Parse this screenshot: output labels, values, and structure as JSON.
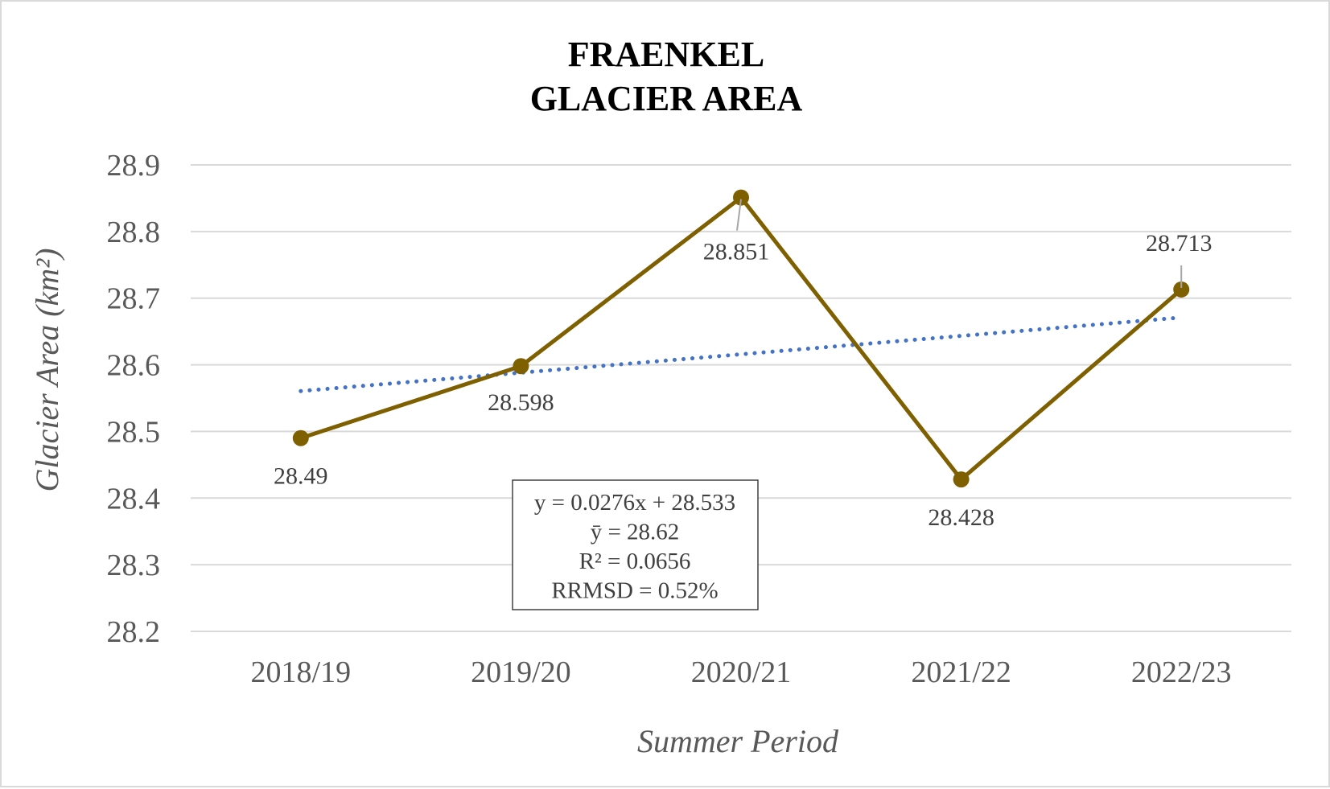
{
  "chart_data": {
    "type": "line",
    "title_lines": [
      "FRAENKEL",
      "GLACIER AREA"
    ],
    "xlabel": "Summer Period",
    "ylabel": "Glacier Area (km²)",
    "categories": [
      "2018/19",
      "2019/20",
      "2020/21",
      "2021/22",
      "2022/23"
    ],
    "values": [
      28.49,
      28.598,
      28.851,
      28.428,
      28.713
    ],
    "data_labels": [
      "28.49",
      "28.598",
      "28.851",
      "28.428",
      "28.713"
    ],
    "ylim": [
      28.2,
      28.9
    ],
    "yticks": [
      "28.2",
      "28.3",
      "28.4",
      "28.5",
      "28.6",
      "28.7",
      "28.8",
      "28.9"
    ],
    "grid": true,
    "trendline": {
      "type": "linear",
      "slope": 0.0276,
      "intercept": 28.533,
      "style": "dotted",
      "color": "#4472C4"
    },
    "stats_box": [
      "y = 0.0276x + 28.533",
      "ȳ = 28.62",
      "R² = 0.0656",
      "RRMSD =  0.52%"
    ],
    "colors": {
      "series": "#7F6000",
      "trend": "#4472C4",
      "grid": "#d9d9d9",
      "text": "#595959"
    }
  }
}
